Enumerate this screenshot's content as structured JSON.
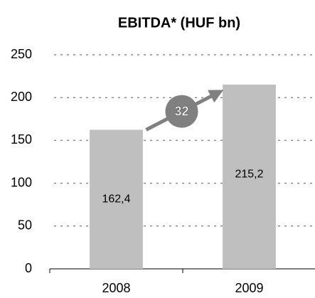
{
  "chart_data": {
    "type": "bar",
    "title": "EBITDA* (HUF bn)",
    "categories": [
      "2008",
      "2009"
    ],
    "values": [
      162.4,
      215.2
    ],
    "value_labels": [
      "162,4",
      "215,2"
    ],
    "color": "#bfbfbf",
    "annotation": "32",
    "ylim": [
      0,
      250
    ],
    "yticks": [
      0,
      50,
      100,
      150,
      200,
      250
    ],
    "grid": true
  }
}
